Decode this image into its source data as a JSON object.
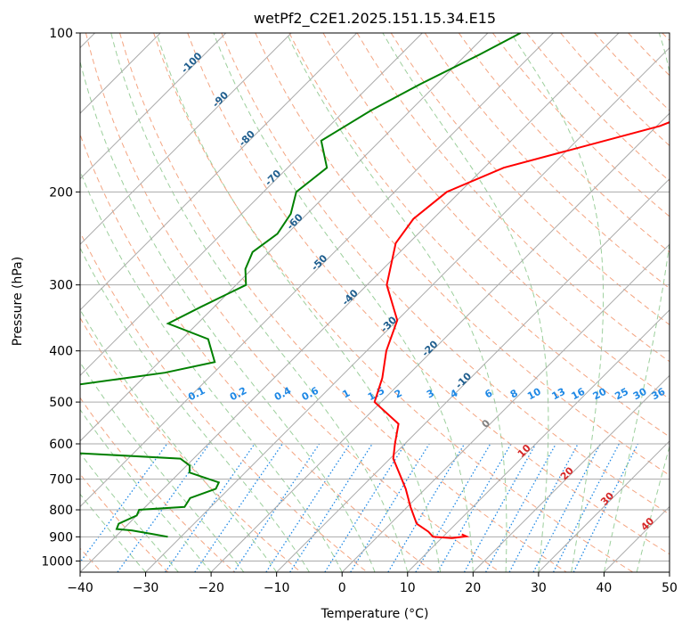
{
  "chart_data": {
    "type": "line",
    "title": "wetPf2_C2E1.2025.151.15.34.E15",
    "xlabel": "Temperature (°C)",
    "ylabel": "Pressure (hPa)",
    "xlim": [
      -40,
      50
    ],
    "ylim": [
      1050,
      100
    ],
    "y_scale": "log",
    "skew": "skew-T",
    "x_ticks": [
      -40,
      -30,
      -20,
      -10,
      0,
      10,
      20,
      30,
      40,
      50
    ],
    "y_ticks": [
      100,
      200,
      300,
      400,
      500,
      600,
      700,
      800,
      900,
      1000
    ],
    "grid": true,
    "series": [
      {
        "color": "#ff0000",
        "points": [
          [
            -6.5,
            100
          ],
          [
            -8.5,
            110
          ],
          [
            -9.8,
            125
          ],
          [
            -19.5,
            150
          ],
          [
            -37,
            180
          ],
          [
            -42,
            200
          ],
          [
            -43,
            225
          ],
          [
            -42,
            250
          ],
          [
            -37,
            300
          ],
          [
            -30,
            350
          ],
          [
            -27,
            400
          ],
          [
            -23.5,
            450
          ],
          [
            -21,
            500
          ],
          [
            -14,
            550
          ],
          [
            -11.5,
            600
          ],
          [
            -9.5,
            640
          ],
          [
            -6.5,
            680
          ],
          [
            -3,
            730
          ],
          [
            0.5,
            790
          ],
          [
            4,
            850
          ],
          [
            7,
            880
          ],
          [
            8.5,
            900
          ],
          [
            11.5,
            905
          ],
          [
            13.5,
            898
          ],
          [
            12.5,
            890
          ]
        ]
      },
      {
        "color": "#008000",
        "points": [
          [
            -55,
            100
          ],
          [
            -58,
            110
          ],
          [
            -62.5,
            125
          ],
          [
            -66,
            140
          ],
          [
            -69,
            160
          ],
          [
            -64,
            180
          ],
          [
            -64.5,
            190
          ],
          [
            -65,
            200
          ],
          [
            -62.5,
            220
          ],
          [
            -61.5,
            240
          ],
          [
            -62.5,
            260
          ],
          [
            -61,
            280
          ],
          [
            -58.5,
            300
          ],
          [
            -62,
            330
          ],
          [
            -64.5,
            355
          ],
          [
            -56,
            380
          ],
          [
            -51.5,
            420
          ],
          [
            -57.5,
            440
          ],
          [
            -72,
            470
          ],
          [
            -70,
            510
          ],
          [
            -69.5,
            540
          ],
          [
            -68.5,
            580
          ],
          [
            -64,
            620
          ],
          [
            -42,
            640
          ],
          [
            -39.5,
            660
          ],
          [
            -38.5,
            680
          ],
          [
            -32.5,
            710
          ],
          [
            -32,
            730
          ],
          [
            -34.5,
            760
          ],
          [
            -34,
            790
          ],
          [
            -40.5,
            800
          ],
          [
            -40,
            820
          ],
          [
            -41.5,
            850
          ],
          [
            -41,
            870
          ],
          [
            -38.5,
            875
          ],
          [
            -34.5,
            890
          ],
          [
            -32,
            900
          ]
        ]
      }
    ],
    "dry_adiabat_labels": [
      "-100",
      "-90",
      "-80",
      "-70",
      "-60",
      "-50",
      "-40",
      "-30",
      "-20",
      "-10",
      "0",
      "10",
      "20",
      "30",
      "40"
    ],
    "mixing_ratio_labels": [
      "0.1",
      "0.2",
      "0.4",
      "0.6",
      "1",
      "1.5",
      "2",
      "3",
      "4",
      "6",
      "8",
      "10",
      "13",
      "16",
      "20",
      "25",
      "30",
      "36"
    ],
    "colors": {
      "temperature": "#ff0000",
      "dewpoint": "#008000",
      "isotherm_grid": "#aaaaaa",
      "dry_adiabat": "#f4a582",
      "moist_adiabat": "#9ccf9c",
      "mixing_ratio": "#1e88e5",
      "dry_adiabat_label": "#1f5e8e",
      "moist_adiabat_label": "#d62728",
      "outer_curve": "#d2b48c"
    }
  }
}
